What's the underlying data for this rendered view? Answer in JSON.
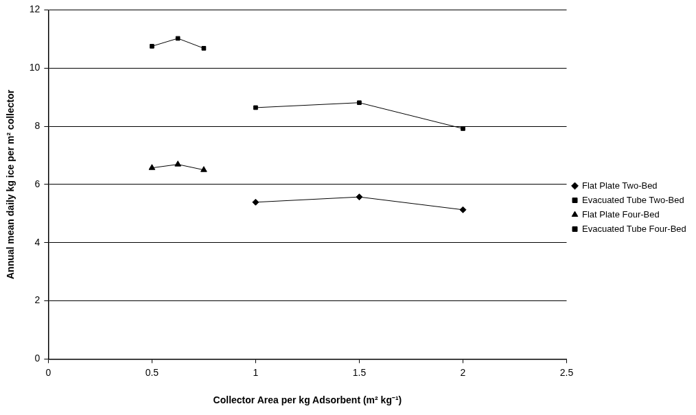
{
  "chart_data": {
    "type": "line",
    "xlabel": "Collector Area per kg Adsorbent (m² kg⁻¹)",
    "ylabel": "Annual mean daily kg ice per m² collector",
    "xlim": [
      0,
      2.5
    ],
    "xticks": [
      0,
      0.5,
      1,
      1.5,
      2,
      2.5
    ],
    "ylim": [
      0,
      12
    ],
    "yticks": [
      0,
      2,
      4,
      6,
      8,
      10,
      12
    ],
    "grid": "y",
    "legend": "right",
    "line_style": "solid",
    "series": [
      {
        "name": "Flat Plate Two-Bed",
        "color": "#000000",
        "marker": "diamond",
        "x": [
          1,
          1.5,
          2
        ],
        "values": [
          5.39,
          5.57,
          5.13
        ]
      },
      {
        "name": "Evacuated Tube Two-Bed",
        "color": "#000000",
        "marker": "square",
        "x": [
          1,
          1.5,
          2
        ],
        "values": [
          8.64,
          8.81,
          7.92
        ]
      },
      {
        "name": "Flat Plate Four-Bed",
        "color": "#000000",
        "marker": "triangle",
        "x": [
          0.5,
          0.625,
          0.75
        ],
        "values": [
          6.57,
          6.69,
          6.5
        ]
      },
      {
        "name": "Evacuated Tube Four-Bed",
        "color": "#000000",
        "marker": "square",
        "x": [
          0.5,
          0.625,
          0.75
        ],
        "values": [
          10.75,
          11.02,
          10.68
        ]
      }
    ]
  }
}
